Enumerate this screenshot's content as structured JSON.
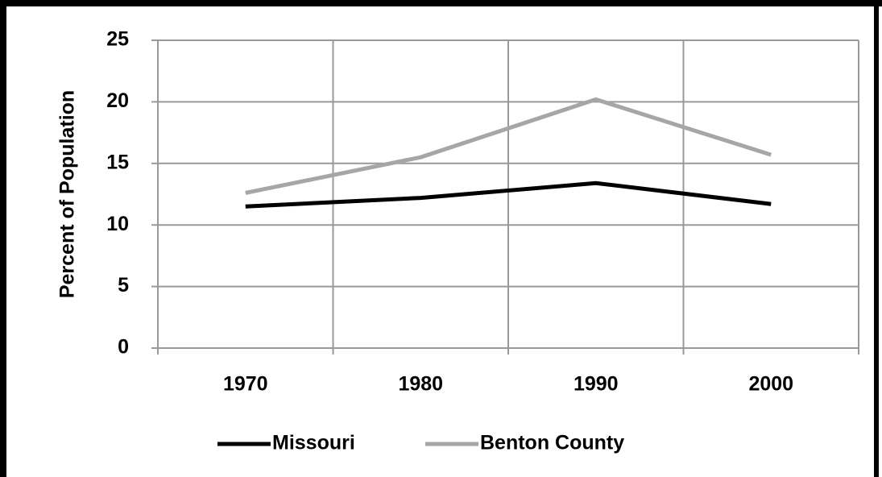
{
  "chart_data": {
    "type": "line",
    "ylabel": "Percent of Population",
    "categories": [
      "1970",
      "1980",
      "1990",
      "2000"
    ],
    "series": [
      {
        "name": "Missouri",
        "color": "#000000",
        "values": [
          11.5,
          12.2,
          13.4,
          11.7
        ]
      },
      {
        "name": "Benton County",
        "color": "#a6a6a6",
        "values": [
          12.6,
          15.5,
          20.2,
          15.7
        ]
      }
    ],
    "ylim": [
      0,
      25
    ],
    "yticks": [
      0,
      5,
      10,
      15,
      20,
      25
    ],
    "grid": true,
    "legend": "bottom"
  }
}
